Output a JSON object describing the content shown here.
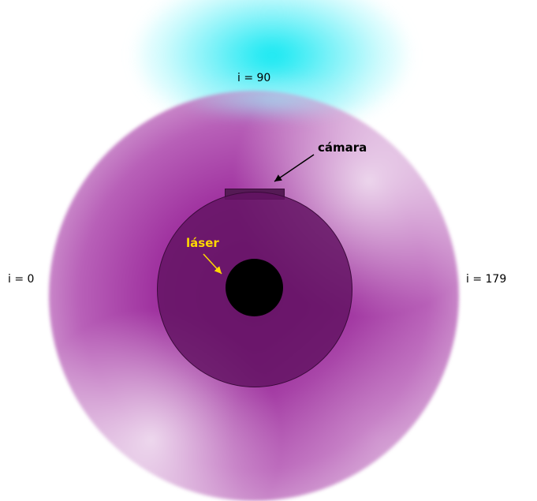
{
  "labels": {
    "top": "i = 90",
    "left": "i = 0",
    "right": "i = 179",
    "camera": "cámara",
    "laser": "láser"
  },
  "colors": {
    "outer_disk": "#a033a0",
    "inner_disk": "#641464",
    "camera_box": "#551a55",
    "laser_hole": "#000000",
    "glow": "#00e6f0",
    "camera_label": "#000000",
    "laser_label": "#ffd800"
  }
}
